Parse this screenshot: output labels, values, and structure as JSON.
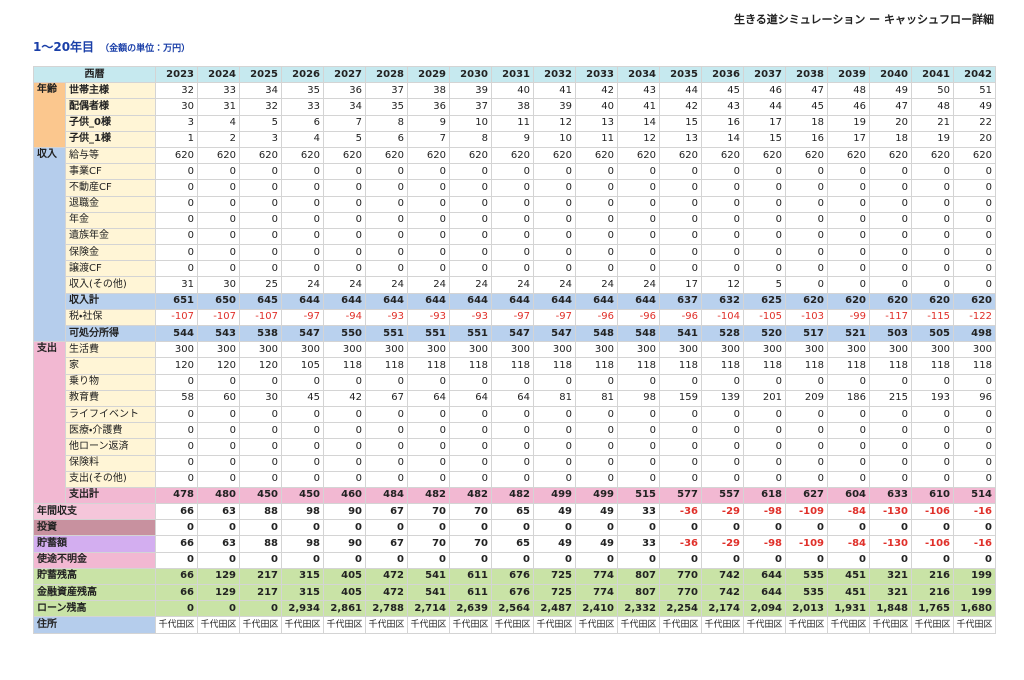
{
  "header": {
    "title": "生きる道シミュレーション ー キャッシュフロー詳細",
    "subtitle": "1〜20年目",
    "unit_note": "（金額の単位：万円）"
  },
  "table": {
    "corner": "西暦",
    "years": [
      2023,
      2024,
      2025,
      2026,
      2027,
      2028,
      2029,
      2030,
      2031,
      2032,
      2033,
      2034,
      2035,
      2036,
      2037,
      2038,
      2039,
      2040,
      2041,
      2042
    ],
    "groups": [
      {
        "label": "年齢",
        "rows": [
          {
            "label": "世帯主様",
            "values": [
              32,
              33,
              34,
              35,
              36,
              37,
              38,
              39,
              40,
              41,
              42,
              43,
              44,
              45,
              46,
              47,
              48,
              49,
              50,
              51
            ]
          },
          {
            "label": "配偶者様",
            "values": [
              30,
              31,
              32,
              33,
              34,
              35,
              36,
              37,
              38,
              39,
              40,
              41,
              42,
              43,
              44,
              45,
              46,
              47,
              48,
              49
            ]
          },
          {
            "label": "子供_0様",
            "values": [
              3,
              4,
              5,
              6,
              7,
              8,
              9,
              10,
              11,
              12,
              13,
              14,
              15,
              16,
              17,
              18,
              19,
              20,
              21,
              22
            ]
          },
          {
            "label": "子供_1様",
            "values": [
              1,
              2,
              3,
              4,
              5,
              6,
              7,
              8,
              9,
              10,
              11,
              12,
              13,
              14,
              15,
              16,
              17,
              18,
              19,
              20
            ]
          }
        ]
      },
      {
        "label": "収入",
        "rows": [
          {
            "label": "給与等",
            "values": [
              620,
              620,
              620,
              620,
              620,
              620,
              620,
              620,
              620,
              620,
              620,
              620,
              620,
              620,
              620,
              620,
              620,
              620,
              620,
              620
            ]
          },
          {
            "label": "事業CF",
            "values": [
              0,
              0,
              0,
              0,
              0,
              0,
              0,
              0,
              0,
              0,
              0,
              0,
              0,
              0,
              0,
              0,
              0,
              0,
              0,
              0
            ]
          },
          {
            "label": "不動産CF",
            "values": [
              0,
              0,
              0,
              0,
              0,
              0,
              0,
              0,
              0,
              0,
              0,
              0,
              0,
              0,
              0,
              0,
              0,
              0,
              0,
              0
            ]
          },
          {
            "label": "退職金",
            "values": [
              0,
              0,
              0,
              0,
              0,
              0,
              0,
              0,
              0,
              0,
              0,
              0,
              0,
              0,
              0,
              0,
              0,
              0,
              0,
              0
            ]
          },
          {
            "label": "年金",
            "values": [
              0,
              0,
              0,
              0,
              0,
              0,
              0,
              0,
              0,
              0,
              0,
              0,
              0,
              0,
              0,
              0,
              0,
              0,
              0,
              0
            ]
          },
          {
            "label": "遺族年金",
            "values": [
              0,
              0,
              0,
              0,
              0,
              0,
              0,
              0,
              0,
              0,
              0,
              0,
              0,
              0,
              0,
              0,
              0,
              0,
              0,
              0
            ]
          },
          {
            "label": "保険金",
            "values": [
              0,
              0,
              0,
              0,
              0,
              0,
              0,
              0,
              0,
              0,
              0,
              0,
              0,
              0,
              0,
              0,
              0,
              0,
              0,
              0
            ]
          },
          {
            "label": "譲渡CF",
            "values": [
              0,
              0,
              0,
              0,
              0,
              0,
              0,
              0,
              0,
              0,
              0,
              0,
              0,
              0,
              0,
              0,
              0,
              0,
              0,
              0
            ]
          },
          {
            "label": "収入(その他)",
            "values": [
              31,
              30,
              25,
              24,
              24,
              24,
              24,
              24,
              24,
              24,
              24,
              24,
              17,
              12,
              5,
              0,
              0,
              0,
              0,
              0
            ]
          },
          {
            "label": "収入計",
            "values": [
              651,
              650,
              645,
              644,
              644,
              644,
              644,
              644,
              644,
              644,
              644,
              644,
              637,
              632,
              625,
              620,
              620,
              620,
              620,
              620
            ]
          },
          {
            "label": "税・社保",
            "values": [
              -107,
              -107,
              -107,
              -97,
              -94,
              -93,
              -93,
              -93,
              -97,
              -97,
              -96,
              -96,
              -96,
              -104,
              -105,
              -103,
              -99,
              -117,
              -115,
              -122
            ]
          },
          {
            "label": "可処分所得",
            "values": [
              544,
              543,
              538,
              547,
              550,
              551,
              551,
              551,
              547,
              547,
              548,
              548,
              541,
              528,
              520,
              517,
              521,
              503,
              505,
              498
            ]
          }
        ]
      },
      {
        "label": "支出",
        "rows": [
          {
            "label": "生活費",
            "values": [
              300,
              300,
              300,
              300,
              300,
              300,
              300,
              300,
              300,
              300,
              300,
              300,
              300,
              300,
              300,
              300,
              300,
              300,
              300,
              300
            ]
          },
          {
            "label": "家",
            "values": [
              120,
              120,
              120,
              105,
              118,
              118,
              118,
              118,
              118,
              118,
              118,
              118,
              118,
              118,
              118,
              118,
              118,
              118,
              118,
              118
            ]
          },
          {
            "label": "乗り物",
            "values": [
              0,
              0,
              0,
              0,
              0,
              0,
              0,
              0,
              0,
              0,
              0,
              0,
              0,
              0,
              0,
              0,
              0,
              0,
              0,
              0
            ]
          },
          {
            "label": "教育費",
            "values": [
              58,
              60,
              30,
              45,
              42,
              67,
              64,
              64,
              64,
              81,
              81,
              98,
              159,
              139,
              201,
              209,
              186,
              215,
              193,
              96
            ]
          },
          {
            "label": "ライフイベント",
            "values": [
              0,
              0,
              0,
              0,
              0,
              0,
              0,
              0,
              0,
              0,
              0,
              0,
              0,
              0,
              0,
              0,
              0,
              0,
              0,
              0
            ]
          },
          {
            "label": "医療・介護費",
            "values": [
              0,
              0,
              0,
              0,
              0,
              0,
              0,
              0,
              0,
              0,
              0,
              0,
              0,
              0,
              0,
              0,
              0,
              0,
              0,
              0
            ]
          },
          {
            "label": "他ローン返済",
            "values": [
              0,
              0,
              0,
              0,
              0,
              0,
              0,
              0,
              0,
              0,
              0,
              0,
              0,
              0,
              0,
              0,
              0,
              0,
              0,
              0
            ]
          },
          {
            "label": "保険料",
            "values": [
              0,
              0,
              0,
              0,
              0,
              0,
              0,
              0,
              0,
              0,
              0,
              0,
              0,
              0,
              0,
              0,
              0,
              0,
              0,
              0
            ]
          },
          {
            "label": "支出(その他)",
            "values": [
              0,
              0,
              0,
              0,
              0,
              0,
              0,
              0,
              0,
              0,
              0,
              0,
              0,
              0,
              0,
              0,
              0,
              0,
              0,
              0
            ]
          },
          {
            "label": "支出計",
            "values": [
              478,
              480,
              450,
              450,
              460,
              484,
              482,
              482,
              482,
              499,
              499,
              515,
              577,
              557,
              618,
              627,
              604,
              633,
              610,
              514
            ]
          }
        ]
      }
    ],
    "summary_rows": [
      {
        "label": "年間収支",
        "values": [
          66,
          63,
          88,
          98,
          90,
          67,
          70,
          70,
          65,
          49,
          49,
          33,
          -36,
          -29,
          -98,
          -109,
          -84,
          -130,
          -106,
          -16
        ]
      },
      {
        "label": "投資",
        "values": [
          0,
          0,
          0,
          0,
          0,
          0,
          0,
          0,
          0,
          0,
          0,
          0,
          0,
          0,
          0,
          0,
          0,
          0,
          0,
          0
        ]
      },
      {
        "label": "貯蓄額",
        "values": [
          66,
          63,
          88,
          98,
          90,
          67,
          70,
          70,
          65,
          49,
          49,
          33,
          -36,
          -29,
          -98,
          -109,
          -84,
          -130,
          -106,
          -16
        ]
      },
      {
        "label": "使途不明金",
        "values": [
          0,
          0,
          0,
          0,
          0,
          0,
          0,
          0,
          0,
          0,
          0,
          0,
          0,
          0,
          0,
          0,
          0,
          0,
          0,
          0
        ]
      },
      {
        "label": "貯蓄残高",
        "values": [
          66,
          129,
          217,
          315,
          405,
          472,
          541,
          611,
          676,
          725,
          774,
          807,
          770,
          742,
          644,
          535,
          451,
          321,
          216,
          199
        ]
      },
      {
        "label": "金融資産残高",
        "values": [
          66,
          129,
          217,
          315,
          405,
          472,
          541,
          611,
          676,
          725,
          774,
          807,
          770,
          742,
          644,
          535,
          451,
          321,
          216,
          199
        ]
      },
      {
        "label": "ローン残高",
        "values": [
          0,
          0,
          0,
          "2,934",
          "2,861",
          "2,788",
          "2,714",
          "2,639",
          "2,564",
          "2,487",
          "2,410",
          "2,332",
          "2,254",
          "2,174",
          "2,094",
          "2,013",
          "1,931",
          "1,848",
          "1,765",
          "1,680"
        ]
      },
      {
        "label": "住所",
        "values": [
          "千代田区",
          "千代田区",
          "千代田区",
          "千代田区",
          "千代田区",
          "千代田区",
          "千代田区",
          "千代田区",
          "千代田区",
          "千代田区",
          "千代田区",
          "千代田区",
          "千代田区",
          "千代田区",
          "千代田区",
          "千代田区",
          "千代田区",
          "千代田区",
          "千代田区",
          "千代田区"
        ]
      }
    ]
  }
}
